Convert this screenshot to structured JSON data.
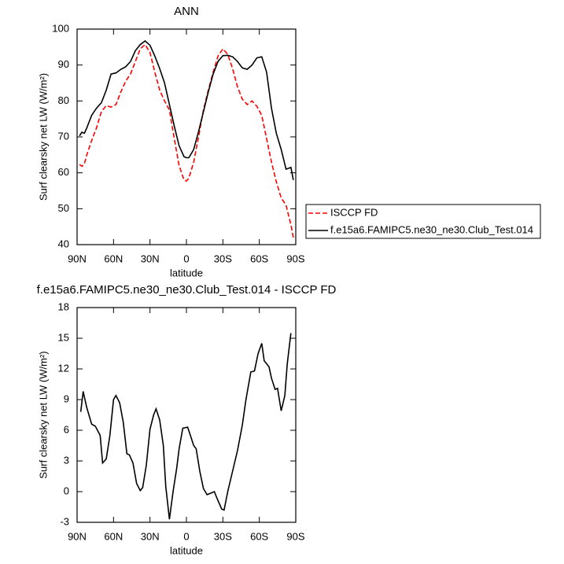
{
  "chart_data": [
    {
      "type": "line",
      "title": "ANN",
      "x_label": "latitude",
      "y_label": "Surf clearsky net LW (W/m²)",
      "x": [
        88,
        86,
        84,
        82,
        78,
        74,
        70,
        66,
        62,
        58,
        54,
        50,
        46,
        42,
        38,
        34,
        30,
        26,
        22,
        18,
        14,
        10,
        6,
        2,
        0,
        -2,
        -6,
        -10,
        -14,
        -18,
        -22,
        -26,
        -30,
        -34,
        -38,
        -42,
        -46,
        -50,
        -54,
        -58,
        -62,
        -66,
        -70,
        -74,
        -78,
        -82,
        -86,
        -88
      ],
      "series": [
        {
          "name": "ISCCP FD",
          "color": "#ff0000",
          "dashed": true,
          "values": [
            62.3,
            61.8,
            62.5,
            65,
            69,
            72.5,
            77,
            78.7,
            78.3,
            79,
            82.5,
            85.5,
            87.5,
            91,
            94.5,
            95.7,
            93.5,
            88,
            83,
            80,
            77.5,
            69.5,
            62,
            58,
            57.7,
            58.5,
            63,
            70,
            77.5,
            83,
            88,
            92.5,
            94.5,
            93,
            89,
            84,
            80.5,
            79,
            80,
            78.5,
            76,
            69.5,
            63,
            57.5,
            53,
            51,
            45.5,
            42
          ]
        },
        {
          "name": "f.e15a6.FAMIPC5.ne30_ne30.Club_Test.014",
          "color": "#000000",
          "dashed": false,
          "values": [
            70.3,
            71.3,
            71,
            72.5,
            76,
            78,
            79.5,
            83,
            87.5,
            87.8,
            88.8,
            89.5,
            91,
            94,
            95.7,
            96.7,
            95.5,
            92.5,
            89,
            85,
            79,
            73,
            67.5,
            64.5,
            64.2,
            64.2,
            66.5,
            71.5,
            77,
            82.5,
            87.5,
            91,
            92.6,
            92.7,
            92.3,
            91,
            89.2,
            88.8,
            90,
            92,
            92.3,
            88,
            78,
            71,
            66.5,
            61,
            61.5,
            58
          ]
        }
      ],
      "xlim": [
        90,
        -90
      ],
      "xticks": [
        {
          "value": 90,
          "label": "90N"
        },
        {
          "value": 60,
          "label": "60N"
        },
        {
          "value": 30,
          "label": "30N"
        },
        0,
        {
          "value": -30,
          "label": "30S"
        },
        {
          "value": -60,
          "label": "60S"
        },
        {
          "value": -90,
          "label": "90S"
        }
      ],
      "ylim": [
        40,
        100
      ],
      "yticks": [
        40,
        50,
        60,
        70,
        80,
        90,
        100
      ],
      "legend": "outside-right"
    },
    {
      "type": "line",
      "title": "f.e15a6.FAMIPC5.ne30_ne30.Club_Test.014 - ISCCP FD",
      "x_label": "latitude",
      "y_label": "Surf clearsky net LW (W/m²)",
      "x": [
        87,
        85,
        82,
        78,
        75,
        71,
        69,
        66,
        63,
        60,
        58,
        55,
        52,
        49,
        47,
        44,
        41,
        38,
        36,
        33,
        30,
        27,
        25,
        22,
        19,
        17,
        14,
        11,
        8,
        6,
        3,
        -1,
        -3,
        -6,
        -8,
        -11,
        -14,
        -17,
        -19,
        -23,
        -25,
        -29,
        -31,
        -34,
        -38,
        -42,
        -46,
        -49,
        -53,
        -56,
        -59,
        -62,
        -64,
        -68,
        -70,
        -73,
        -75,
        -78,
        -81,
        -83,
        -86
      ],
      "series": [
        {
          "name": "f.e15a6.FAMIPC5.ne30_ne30.Club_Test.014 - ISCCP FD",
          "color": "#000000",
          "dashed": false,
          "values": [
            7.8,
            9.8,
            8.2,
            6.6,
            6.4,
            5.5,
            2.8,
            3.2,
            5.5,
            9,
            9.4,
            8.7,
            6.8,
            3.7,
            3.6,
            2.8,
            0.8,
            0.1,
            0.4,
            2.6,
            6.1,
            7.5,
            8.1,
            7,
            4.5,
            0.5,
            -2.7,
            0,
            2.3,
            4.2,
            6.2,
            6.3,
            5.6,
            4.5,
            4.2,
            2,
            0.3,
            -0.3,
            -0.2,
            0,
            -0.6,
            -1.7,
            -1.8,
            0,
            2,
            4,
            6.5,
            9,
            11.7,
            11.8,
            13.5,
            14.5,
            12.8,
            12.2,
            11.1,
            10,
            10.1,
            7.9,
            9.4,
            12.5,
            15.5
          ]
        }
      ],
      "xlim": [
        90,
        -90
      ],
      "xticks": [
        {
          "value": 90,
          "label": "90N"
        },
        {
          "value": 60,
          "label": "60N"
        },
        {
          "value": 30,
          "label": "30N"
        },
        0,
        {
          "value": -30,
          "label": "30S"
        },
        {
          "value": -60,
          "label": "60S"
        },
        {
          "value": -90,
          "label": "90S"
        }
      ],
      "ylim": [
        -3,
        18
      ],
      "yticks": [
        -3,
        0,
        3,
        6,
        9,
        12,
        15,
        18
      ]
    }
  ]
}
